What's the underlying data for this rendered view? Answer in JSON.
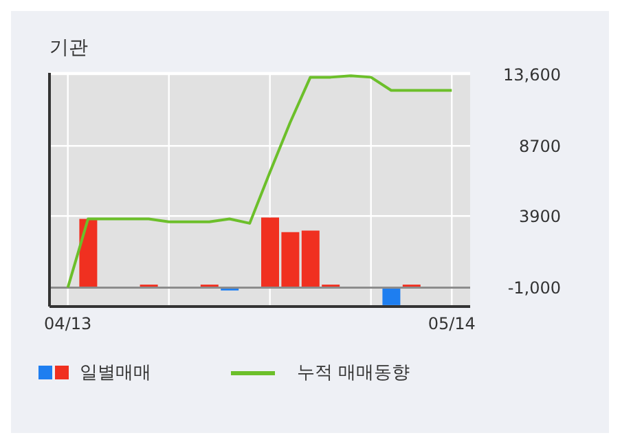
{
  "chart_data": {
    "type": "bar",
    "title": "기관",
    "categories": [
      "04/13",
      null,
      null,
      null,
      null,
      null,
      null,
      null,
      null,
      null,
      null,
      null,
      null,
      null,
      null,
      null,
      null,
      null,
      null,
      "05/14"
    ],
    "series": [
      {
        "name": "일별매매",
        "colors": [
          "#f03020",
          "#f03020",
          "#f03020",
          "#f03020",
          "#f03020",
          "#f03020",
          "#f03020",
          "#f03020",
          "#1e7ef0",
          "#f03020",
          "#f03020",
          "#f03020",
          "#f03020",
          "#f03020",
          "#f03020",
          "#f03020",
          "#1e7ef0",
          "#f03020",
          "#f03020",
          "#f03020"
        ],
        "base": [
          null,
          -1000,
          null,
          null,
          -1000,
          null,
          null,
          -1000,
          -1000,
          null,
          -1000,
          -1000,
          -1000,
          -1000,
          null,
          null,
          -1000,
          -1000,
          null,
          null
        ],
        "values": [
          null,
          4700,
          null,
          null,
          200,
          null,
          null,
          200,
          -200,
          null,
          4800,
          3800,
          3900,
          200,
          null,
          null,
          -1200,
          200,
          null,
          null
        ]
      },
      {
        "name": "누적 매매동향",
        "type": "line",
        "color": "#6cbf2a",
        "values": [
          -1000,
          3700,
          3700,
          3700,
          3700,
          3500,
          3500,
          3500,
          3700,
          3400,
          6900,
          10300,
          13400,
          13400,
          13500,
          13400,
          12500,
          12500,
          12500,
          12500
        ]
      }
    ],
    "ylim": [
      -2300,
      13700
    ],
    "yticks": [
      {
        "value": -1000,
        "label": "-1,000"
      },
      3900,
      8700,
      {
        "value": 13600,
        "label": "13,600"
      }
    ],
    "ref_lines": [
      {
        "axis": "y",
        "value": -1000,
        "color": "#8c8c8c"
      }
    ],
    "grid": true,
    "legend": "bottom",
    "marker": "none",
    "line_style": "solid"
  }
}
